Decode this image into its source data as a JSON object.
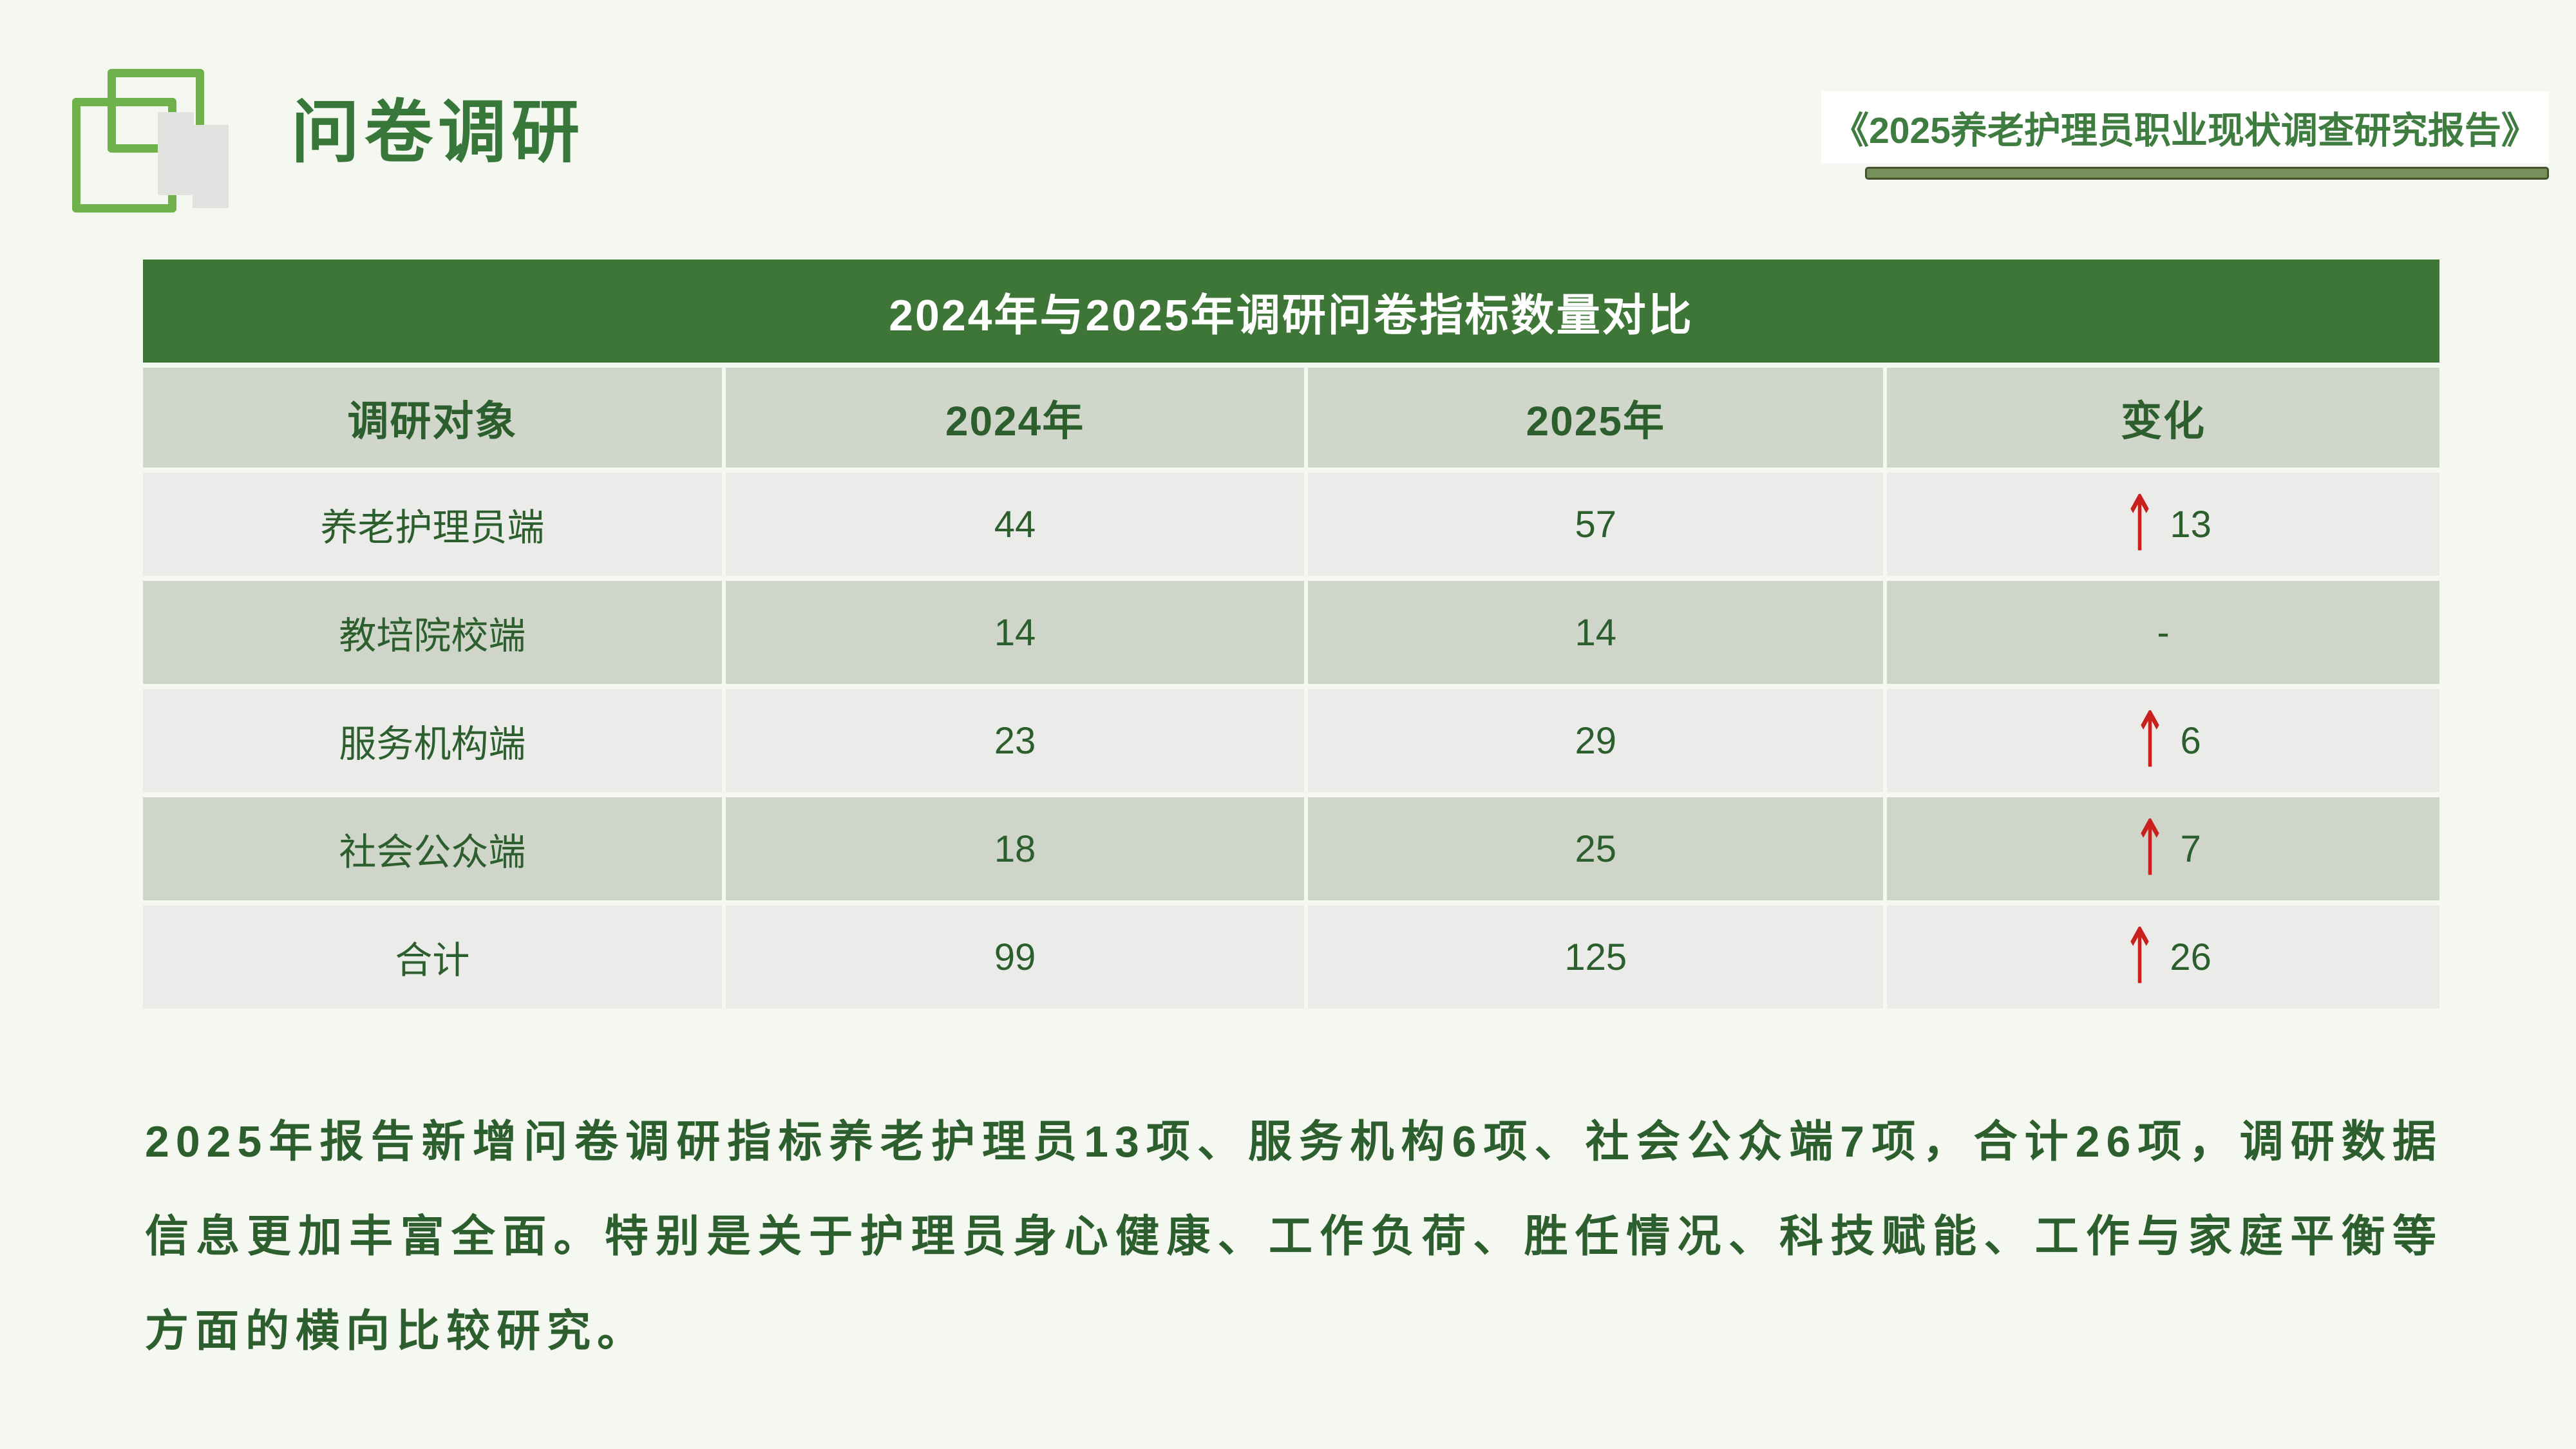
{
  "slide_title": "问卷调研",
  "report_badge": "《2025养老护理员职业现状调查研究报告》",
  "table": {
    "title": "2024年与2025年调研问卷指标数量对比",
    "columns": [
      "调研对象",
      "2024年",
      "2025年",
      "变化"
    ],
    "rows": [
      {
        "label": "养老护理员端",
        "v2024": "44",
        "v2025": "57",
        "arrow": "↑",
        "change": "13"
      },
      {
        "label": "教培院校端",
        "v2024": "14",
        "v2025": "14",
        "arrow": "",
        "change": "-"
      },
      {
        "label": "服务机构端",
        "v2024": "23",
        "v2025": "29",
        "arrow": "↑",
        "change": "6"
      },
      {
        "label": "社会公众端",
        "v2024": "18",
        "v2025": "25",
        "arrow": "↑",
        "change": "7"
      },
      {
        "label": "合计",
        "v2024": "99",
        "v2025": "125",
        "arrow": "↑",
        "change": "26"
      }
    ]
  },
  "summary": "2025年报告新增问卷调研指标养老护理员13项、服务机构6项、社会公众端7项，合计26项，调研数据信息更加丰富全面。特别是关于护理员身心健康、工作负荷、胜任情况、科技赋能、工作与家庭平衡等方面的横向比较研究。",
  "icons": {
    "logo": "overlapping-squares",
    "up_arrow": "↑"
  },
  "colors": {
    "slide_background": "#f5f7f1",
    "table_header_green": "#3e7637",
    "dark_green_text": "#2d5f2e",
    "heading_green": "#37783a",
    "sage_row": "#cfd5c9",
    "light_row": "#ebece9",
    "arrow_red": "#c9201d",
    "logo_green": "#6fb14a",
    "underline_olive": "#76905b"
  },
  "chart_data": {
    "type": "table",
    "title": "2024年与2025年调研问卷指标数量对比",
    "columns": [
      "调研对象",
      "2024年",
      "2025年",
      "变化"
    ],
    "rows": [
      [
        "养老护理员端",
        44,
        57,
        "+13"
      ],
      [
        "教培院校端",
        14,
        14,
        "-"
      ],
      [
        "服务机构端",
        23,
        29,
        "+6"
      ],
      [
        "社会公众端",
        18,
        25,
        "+7"
      ],
      [
        "合计",
        99,
        125,
        "+26"
      ]
    ]
  }
}
